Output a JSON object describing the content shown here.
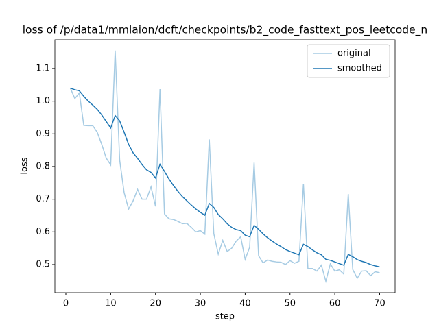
{
  "chart_data": {
    "type": "line",
    "title": "loss of /p/data1/mmlaion/dcft/checkpoints/b2_code_fasttext_pos_leetcode_n",
    "xlabel": "step",
    "ylabel": "loss",
    "x": [
      1,
      2,
      3,
      4,
      5,
      6,
      7,
      8,
      9,
      10,
      11,
      12,
      13,
      14,
      15,
      16,
      17,
      18,
      19,
      20,
      21,
      22,
      23,
      24,
      25,
      26,
      27,
      28,
      29,
      30,
      31,
      32,
      33,
      34,
      35,
      36,
      37,
      38,
      39,
      40,
      41,
      42,
      43,
      44,
      45,
      46,
      47,
      48,
      49,
      50,
      51,
      52,
      53,
      54,
      55,
      56,
      57,
      58,
      59,
      60,
      61,
      62,
      63,
      64,
      65,
      66,
      67,
      68,
      69,
      70
    ],
    "series": [
      {
        "name": "original",
        "color": "#a6cbe3",
        "values": [
          1.04,
          1.008,
          1.025,
          0.926,
          0.925,
          0.925,
          0.905,
          0.868,
          0.826,
          0.805,
          1.155,
          0.82,
          0.72,
          0.67,
          0.695,
          0.73,
          0.7,
          0.7,
          0.738,
          0.678,
          1.037,
          0.655,
          0.64,
          0.638,
          0.632,
          0.625,
          0.626,
          0.614,
          0.6,
          0.604,
          0.593,
          0.883,
          0.595,
          0.532,
          0.574,
          0.54,
          0.55,
          0.572,
          0.585,
          0.516,
          0.553,
          0.812,
          0.527,
          0.505,
          0.514,
          0.51,
          0.508,
          0.507,
          0.5,
          0.512,
          0.504,
          0.51,
          0.747,
          0.488,
          0.488,
          0.48,
          0.498,
          0.449,
          0.502,
          0.48,
          0.484,
          0.471,
          0.716,
          0.485,
          0.458,
          0.48,
          0.481,
          0.466,
          0.478,
          0.475
        ]
      },
      {
        "name": "smoothed",
        "color": "#1f77b4",
        "values": [
          1.04,
          1.035,
          1.032,
          1.015,
          1.0,
          0.988,
          0.975,
          0.958,
          0.938,
          0.918,
          0.956,
          0.94,
          0.905,
          0.868,
          0.842,
          0.825,
          0.806,
          0.79,
          0.782,
          0.765,
          0.807,
          0.785,
          0.762,
          0.742,
          0.724,
          0.708,
          0.695,
          0.682,
          0.67,
          0.66,
          0.651,
          0.687,
          0.675,
          0.653,
          0.64,
          0.625,
          0.614,
          0.607,
          0.604,
          0.59,
          0.585,
          0.62,
          0.608,
          0.594,
          0.582,
          0.572,
          0.563,
          0.555,
          0.546,
          0.54,
          0.535,
          0.53,
          0.562,
          0.555,
          0.545,
          0.536,
          0.53,
          0.516,
          0.513,
          0.508,
          0.503,
          0.498,
          0.531,
          0.524,
          0.515,
          0.51,
          0.506,
          0.5,
          0.496,
          0.493
        ]
      }
    ],
    "xlim": [
      -2.45,
      73.45
    ],
    "xticks": [
      0,
      10,
      20,
      30,
      40,
      50,
      60,
      70
    ],
    "ylim": [
      0.414,
      1.188
    ],
    "yticks": [
      0.5,
      0.6,
      0.7,
      0.8,
      0.9,
      {
        "value": 1,
        "label": "1.0"
      },
      1.1
    ],
    "grid": false,
    "legend": "upper right"
  }
}
